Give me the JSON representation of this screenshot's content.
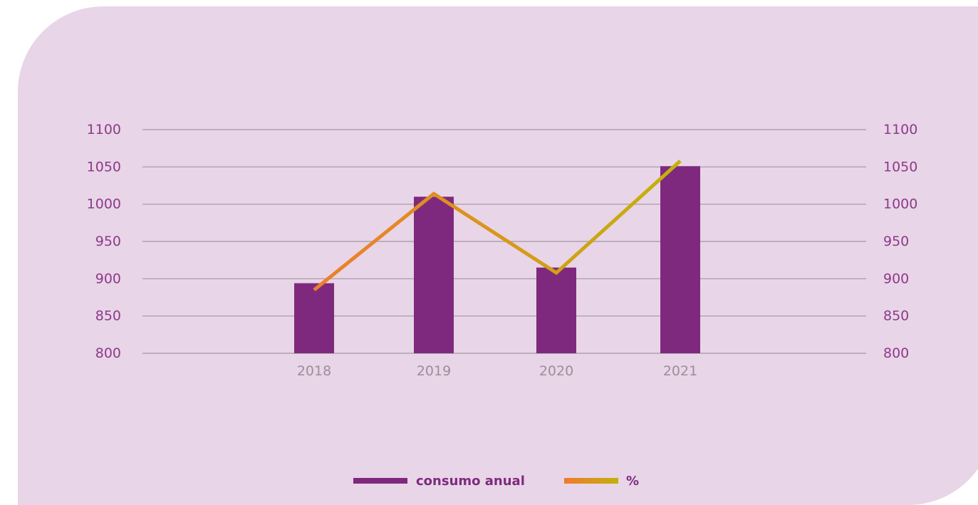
{
  "colors": {
    "background": "#e8d5e7",
    "bar": "#7f297e",
    "grid": "#a396a3",
    "axis_text": "#8d3a8a",
    "x_tick_text": "#9a8f9a",
    "line_gradient_start": "#f07a2e",
    "line_gradient_end": "#c3b00c"
  },
  "chart_data": {
    "type": "bar",
    "categories": [
      "2018",
      "2019",
      "2020",
      "2021"
    ],
    "series": [
      {
        "name": "consumo anual",
        "type": "bar",
        "values": [
          894,
          1010,
          915,
          1051
        ]
      },
      {
        "name": "%",
        "type": "line",
        "values": [
          885,
          1014,
          908,
          1058
        ]
      }
    ],
    "ylim": [
      800,
      1100
    ],
    "yticks": [
      "800",
      "850",
      "900",
      "950",
      "1000",
      "1050",
      "1100"
    ],
    "y2ticks": [
      "800",
      "850",
      "900",
      "950",
      "1000",
      "1050",
      "1100"
    ],
    "grid": true,
    "legend_position": "bottom"
  }
}
